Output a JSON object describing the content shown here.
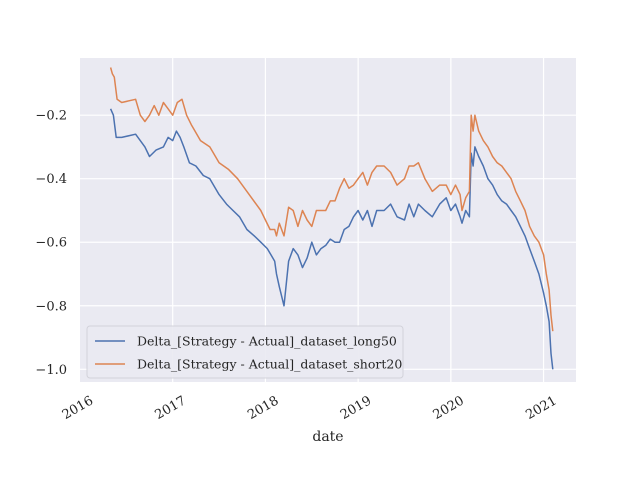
{
  "chart_data": {
    "type": "line",
    "title": "",
    "xlabel": "date",
    "ylabel": "",
    "x_ticks": [
      "2016",
      "2017",
      "2018",
      "2019",
      "2020",
      "2021"
    ],
    "y_ticks": [
      "−1.0",
      "−0.8",
      "−0.6",
      "−0.4",
      "−0.2"
    ],
    "xlim": [
      2016.0,
      2021.35
    ],
    "ylim": [
      -1.04,
      -0.02
    ],
    "grid": true,
    "legend_position": "lower-left",
    "colors": {
      "background": "#eaeaf2",
      "grid": "#ffffff",
      "long50": "#4c72b0",
      "short20": "#dd8452"
    },
    "series": [
      {
        "name": "Delta_[Strategy - Actual]_dataset_long50",
        "x": [
          2016.33,
          2016.36,
          2016.39,
          2016.45,
          2016.6,
          2016.7,
          2016.75,
          2016.82,
          2016.9,
          2016.95,
          2017.0,
          2017.04,
          2017.08,
          2017.12,
          2017.18,
          2017.25,
          2017.33,
          2017.4,
          2017.5,
          2017.58,
          2017.65,
          2017.72,
          2017.8,
          2017.88,
          2017.95,
          2018.02,
          2018.06,
          2018.1,
          2018.12,
          2018.15,
          2018.2,
          2018.25,
          2018.3,
          2018.35,
          2018.4,
          2018.45,
          2018.5,
          2018.55,
          2018.6,
          2018.65,
          2018.7,
          2018.75,
          2018.8,
          2018.85,
          2018.9,
          2018.95,
          2019.0,
          2019.05,
          2019.1,
          2019.15,
          2019.2,
          2019.28,
          2019.35,
          2019.42,
          2019.5,
          2019.55,
          2019.6,
          2019.65,
          2019.72,
          2019.8,
          2019.88,
          2019.95,
          2020.0,
          2020.05,
          2020.1,
          2020.12,
          2020.16,
          2020.2,
          2020.22,
          2020.24,
          2020.26,
          2020.3,
          2020.35,
          2020.4,
          2020.45,
          2020.5,
          2020.55,
          2020.6,
          2020.65,
          2020.7,
          2020.75,
          2020.8,
          2020.85,
          2020.9,
          2020.95,
          2021.0,
          2021.03,
          2021.06,
          2021.08,
          2021.1
        ],
        "values": [
          -0.18,
          -0.2,
          -0.27,
          -0.27,
          -0.26,
          -0.3,
          -0.33,
          -0.31,
          -0.3,
          -0.27,
          -0.28,
          -0.25,
          -0.27,
          -0.3,
          -0.35,
          -0.36,
          -0.39,
          -0.4,
          -0.45,
          -0.48,
          -0.5,
          -0.52,
          -0.56,
          -0.58,
          -0.6,
          -0.62,
          -0.64,
          -0.66,
          -0.7,
          -0.74,
          -0.8,
          -0.66,
          -0.62,
          -0.64,
          -0.68,
          -0.65,
          -0.6,
          -0.64,
          -0.62,
          -0.61,
          -0.59,
          -0.6,
          -0.6,
          -0.56,
          -0.55,
          -0.52,
          -0.5,
          -0.53,
          -0.5,
          -0.55,
          -0.5,
          -0.5,
          -0.48,
          -0.52,
          -0.53,
          -0.48,
          -0.52,
          -0.48,
          -0.5,
          -0.52,
          -0.48,
          -0.46,
          -0.5,
          -0.48,
          -0.52,
          -0.54,
          -0.5,
          -0.52,
          -0.32,
          -0.36,
          -0.3,
          -0.33,
          -0.36,
          -0.4,
          -0.42,
          -0.45,
          -0.47,
          -0.48,
          -0.5,
          -0.52,
          -0.55,
          -0.58,
          -0.62,
          -0.66,
          -0.7,
          -0.76,
          -0.8,
          -0.85,
          -0.95,
          -1.0
        ]
      },
      {
        "name": "Delta_[Strategy - Actual]_dataset_short20",
        "x": [
          2016.33,
          2016.35,
          2016.37,
          2016.4,
          2016.45,
          2016.6,
          2016.65,
          2016.7,
          2016.75,
          2016.8,
          2016.85,
          2016.9,
          2016.95,
          2017.0,
          2017.05,
          2017.1,
          2017.15,
          2017.2,
          2017.3,
          2017.4,
          2017.5,
          2017.6,
          2017.7,
          2017.8,
          2017.9,
          2017.95,
          2018.0,
          2018.05,
          2018.1,
          2018.12,
          2018.15,
          2018.2,
          2018.25,
          2018.3,
          2018.35,
          2018.4,
          2018.45,
          2018.5,
          2018.55,
          2018.6,
          2018.65,
          2018.7,
          2018.75,
          2018.8,
          2018.85,
          2018.9,
          2018.95,
          2019.0,
          2019.05,
          2019.1,
          2019.15,
          2019.2,
          2019.28,
          2019.35,
          2019.42,
          2019.5,
          2019.55,
          2019.6,
          2019.65,
          2019.72,
          2019.8,
          2019.88,
          2019.95,
          2020.0,
          2020.05,
          2020.1,
          2020.12,
          2020.16,
          2020.2,
          2020.22,
          2020.24,
          2020.26,
          2020.3,
          2020.35,
          2020.4,
          2020.45,
          2020.5,
          2020.55,
          2020.6,
          2020.65,
          2020.7,
          2020.75,
          2020.8,
          2020.85,
          2020.9,
          2020.95,
          2021.0,
          2021.03,
          2021.06,
          2021.08,
          2021.1
        ],
        "values": [
          -0.05,
          -0.07,
          -0.08,
          -0.15,
          -0.16,
          -0.15,
          -0.2,
          -0.22,
          -0.2,
          -0.17,
          -0.2,
          -0.16,
          -0.18,
          -0.2,
          -0.16,
          -0.15,
          -0.2,
          -0.23,
          -0.28,
          -0.3,
          -0.35,
          -0.37,
          -0.4,
          -0.44,
          -0.48,
          -0.5,
          -0.53,
          -0.56,
          -0.56,
          -0.58,
          -0.54,
          -0.58,
          -0.49,
          -0.5,
          -0.55,
          -0.5,
          -0.53,
          -0.55,
          -0.5,
          -0.5,
          -0.5,
          -0.47,
          -0.47,
          -0.43,
          -0.4,
          -0.43,
          -0.42,
          -0.4,
          -0.38,
          -0.42,
          -0.38,
          -0.36,
          -0.36,
          -0.38,
          -0.42,
          -0.4,
          -0.36,
          -0.36,
          -0.35,
          -0.4,
          -0.44,
          -0.42,
          -0.42,
          -0.45,
          -0.42,
          -0.45,
          -0.5,
          -0.46,
          -0.44,
          -0.2,
          -0.25,
          -0.2,
          -0.25,
          -0.28,
          -0.3,
          -0.33,
          -0.35,
          -0.36,
          -0.38,
          -0.4,
          -0.44,
          -0.47,
          -0.5,
          -0.55,
          -0.58,
          -0.6,
          -0.64,
          -0.7,
          -0.75,
          -0.83,
          -0.88
        ]
      }
    ]
  }
}
